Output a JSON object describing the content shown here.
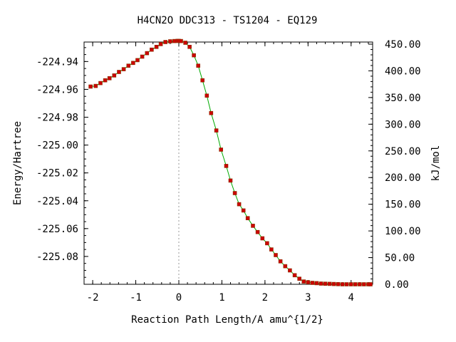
{
  "chart_data": {
    "type": "line",
    "title": "H4CN2O   DDC313 - TS1204 - EQ129",
    "xlabel": "Reaction Path Length/A amu^{1/2}",
    "ylabel": "Energy/Hartree",
    "y2label": "kJ/mol",
    "xlim": [
      -2.2,
      4.5
    ],
    "ylim": [
      -225.1,
      -224.926
    ],
    "y2lim": [
      0,
      454
    ],
    "grid": false,
    "legend": "none",
    "xticks": [
      -2,
      -1,
      0,
      1,
      2,
      3,
      4
    ],
    "xtick_labels": [
      "-2",
      "-1",
      "0",
      "1",
      "2",
      "3",
      "4"
    ],
    "yticks": [
      -224.94,
      -224.96,
      -224.98,
      -225.0,
      -225.02,
      -225.04,
      -225.06,
      -225.08
    ],
    "ytick_labels": [
      "-224.94",
      "-224.96",
      "-224.98",
      "-225.00",
      "-225.02",
      "-225.04",
      "-225.06",
      "-225.08"
    ],
    "y2ticks": [
      450,
      400,
      350,
      300,
      250,
      200,
      150,
      100,
      50,
      0
    ],
    "y2tick_labels": [
      "450.00",
      "400.00",
      "350.00",
      "300.00",
      "250.00",
      "200.00",
      "150.00",
      "100.00",
      "50.00",
      "0.00"
    ],
    "ts_x": 0,
    "colors": {
      "line": "#00aa00",
      "marker": "#cc0000",
      "ts_line": "#999999"
    },
    "series": [
      {
        "x": [
          -2.05,
          -1.93,
          -1.82,
          -1.71,
          -1.61,
          -1.5,
          -1.39,
          -1.28,
          -1.17,
          -1.06,
          -0.96,
          -0.85,
          -0.74,
          -0.63,
          -0.52,
          -0.42,
          -0.31,
          -0.2,
          -0.1,
          -0.03,
          0.0,
          0.05,
          0.15,
          0.25,
          0.35,
          0.45,
          0.55,
          0.65,
          0.75,
          0.87,
          0.98,
          1.1,
          1.2,
          1.3,
          1.4,
          1.5,
          1.6,
          1.72,
          1.83,
          1.94,
          2.05,
          2.15,
          2.25,
          2.36,
          2.47,
          2.58,
          2.69,
          2.8,
          2.9,
          3.0,
          3.1,
          3.2,
          3.3,
          3.4,
          3.5,
          3.6,
          3.7,
          3.8,
          3.9,
          4.0,
          4.1,
          4.2,
          4.3,
          4.4,
          4.45
        ],
        "y": [
          -224.958,
          -224.9575,
          -224.9555,
          -224.9535,
          -224.952,
          -224.95,
          -224.9475,
          -224.9455,
          -224.943,
          -224.941,
          -224.939,
          -224.9365,
          -224.934,
          -224.9315,
          -224.9295,
          -224.9275,
          -224.926,
          -224.9255,
          -224.9253,
          -224.9252,
          -224.9252,
          -224.9253,
          -224.9265,
          -224.9295,
          -224.9355,
          -224.943,
          -224.9535,
          -224.9645,
          -224.977,
          -224.9895,
          -225.0033,
          -225.015,
          -225.0255,
          -225.0345,
          -225.0425,
          -225.047,
          -225.0525,
          -225.058,
          -225.0625,
          -225.067,
          -225.0705,
          -225.075,
          -225.079,
          -225.0835,
          -225.087,
          -225.09,
          -225.0935,
          -225.096,
          -225.098,
          -225.0985,
          -225.099,
          -225.0992,
          -225.0995,
          -225.0996,
          -225.0997,
          -225.0998,
          -225.0999,
          -225.1,
          -225.1,
          -225.1,
          -225.1,
          -225.1,
          -225.1,
          -225.1,
          -225.1
        ]
      }
    ]
  }
}
